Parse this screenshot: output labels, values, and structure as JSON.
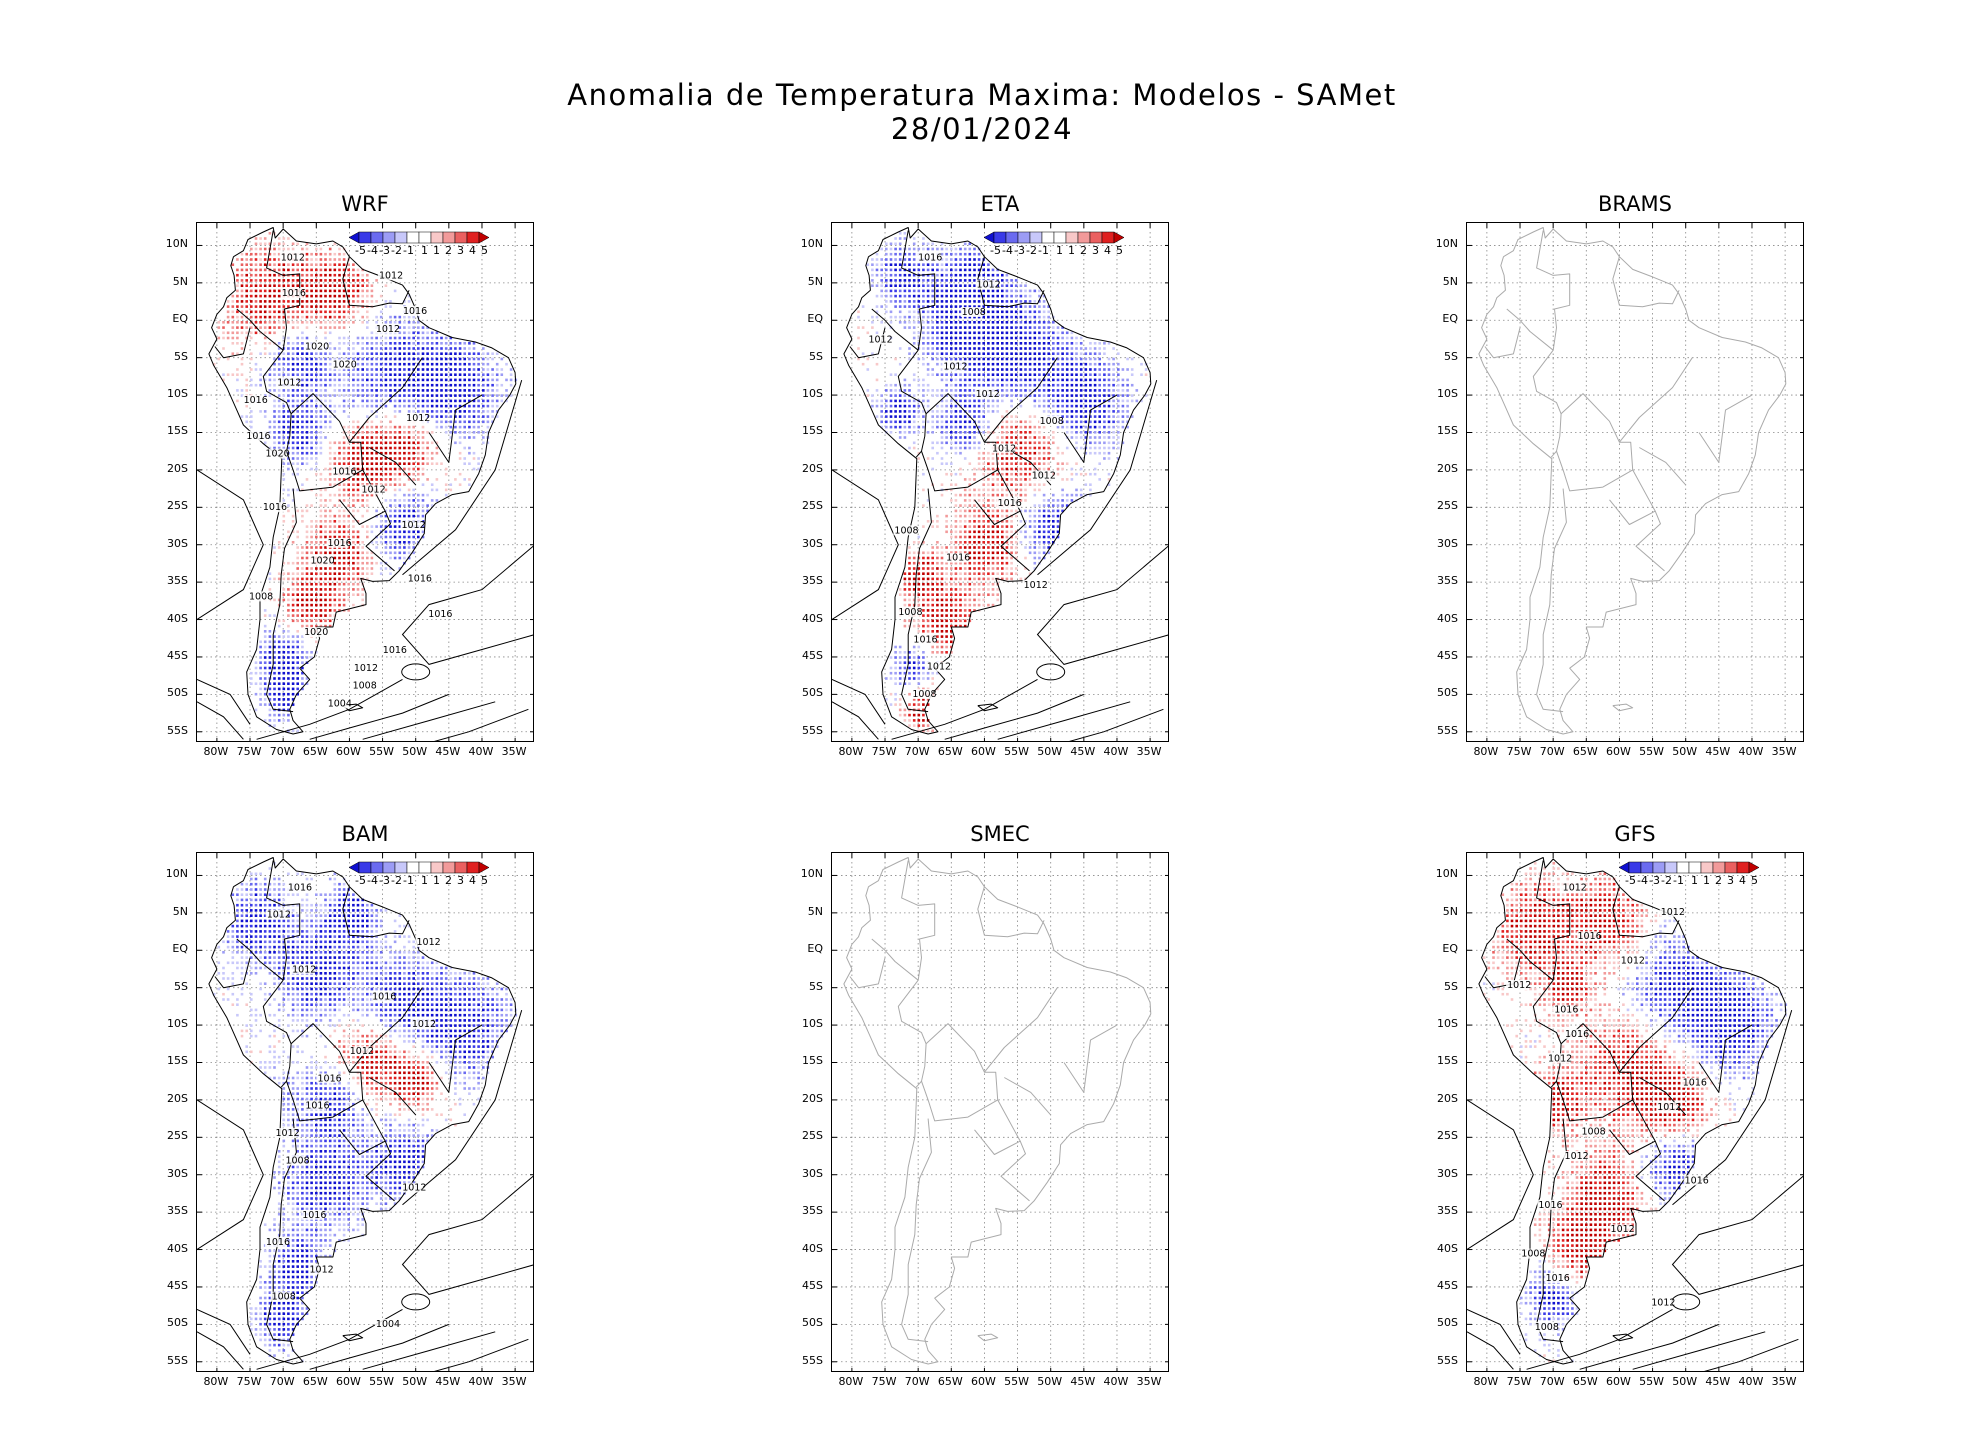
{
  "title": {
    "line1": "Anomalia de Temperatura Maxima: Modelos - SAMet",
    "line2": "28/01/2024"
  },
  "axes": {
    "lat_ticks": [
      "10N",
      "5N",
      "EQ",
      "5S",
      "10S",
      "15S",
      "20S",
      "25S",
      "30S",
      "35S",
      "40S",
      "45S",
      "50S",
      "55S"
    ],
    "lon_ticks": [
      "80W",
      "75W",
      "70W",
      "65W",
      "60W",
      "55W",
      "50W",
      "45W",
      "40W",
      "35W"
    ]
  },
  "colorbar": {
    "labels": [
      "-5",
      "-4",
      "-3",
      "-2",
      "-1",
      "1",
      "1",
      "2",
      "3",
      "4",
      "5"
    ],
    "colors": [
      "#1010d0",
      "#3a3ae8",
      "#6a6af0",
      "#9c9cf5",
      "#c8c8fa",
      "#ffffff",
      "#ffffff",
      "#f8c8c8",
      "#f29a9a",
      "#ea6060",
      "#e02020",
      "#c00000"
    ]
  },
  "colors": {
    "warm": "#e23030",
    "cold": "#2020e0",
    "coast_model": "#000000",
    "coast_obs": "#aaaaaa",
    "grid": "#888888"
  },
  "panels": [
    {
      "id": "wrf",
      "title": "WRF",
      "has_data": true,
      "isobars": [
        "1012",
        "1012",
        "1016",
        "1016",
        "1012",
        "1020",
        "1020",
        "1012",
        "1016",
        "1012",
        "1016",
        "1020",
        "1016",
        "1012",
        "1016",
        "1012",
        "1016",
        "1020",
        "1016",
        "1008",
        "1016",
        "1020",
        "1016",
        "1012",
        "1008",
        "1004"
      ]
    },
    {
      "id": "eta",
      "title": "ETA",
      "has_data": true,
      "isobars": [
        "1016",
        "1012",
        "1008",
        "1012",
        "1012",
        "1012",
        "1008",
        "1012",
        "1012",
        "1016",
        "1008",
        "1016",
        "1012",
        "1008",
        "1016",
        "1012",
        "1008"
      ]
    },
    {
      "id": "brams",
      "title": "BRAMS",
      "has_data": false,
      "isobars": []
    },
    {
      "id": "bam",
      "title": "BAM",
      "has_data": true,
      "isobars": [
        "1016",
        "1012",
        "1012",
        "1012",
        "1016",
        "1012",
        "1012",
        "1016",
        "1016",
        "1012",
        "1008",
        "1012",
        "1016",
        "1016",
        "1012",
        "1008",
        "1004"
      ]
    },
    {
      "id": "smec",
      "title": "SMEC",
      "has_data": false,
      "isobars": []
    },
    {
      "id": "gfs",
      "title": "GFS",
      "has_data": true,
      "isobars": [
        "1012",
        "1012",
        "1016",
        "1012",
        "1012",
        "1016",
        "1016",
        "1012",
        "1016",
        "1012",
        "1008",
        "1012",
        "1016",
        "1016",
        "1012",
        "1008",
        "1016",
        "1012",
        "1008"
      ]
    }
  ]
}
